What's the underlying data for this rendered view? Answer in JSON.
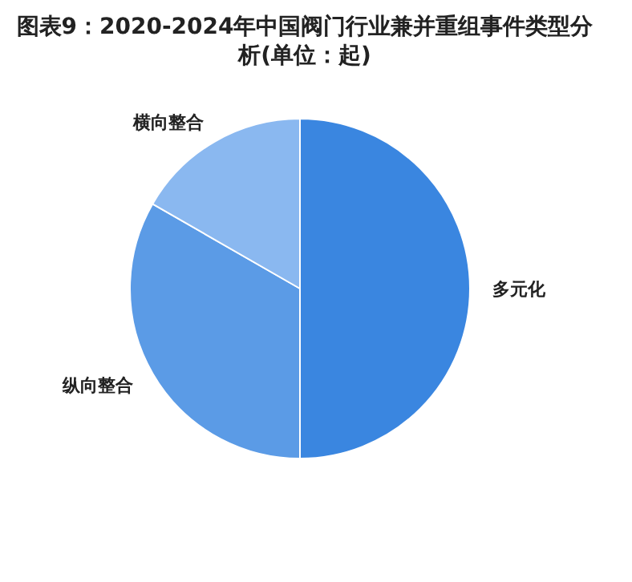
{
  "chart_data": {
    "type": "pie",
    "title": "图表9：2020-2024年中国阀门行业兼并重组事件类型分析(单位：起)",
    "categories": [
      "多元化",
      "纵向整合",
      "横向整合"
    ],
    "values": [
      50,
      33.3,
      16.7
    ],
    "colors": [
      "#3a86e0",
      "#5b9be6",
      "#8ab8f0"
    ]
  }
}
